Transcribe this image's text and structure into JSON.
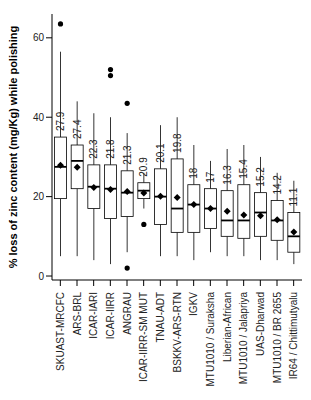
{
  "chart_data": {
    "type": "boxplot",
    "y_label": "% loss of zinc content (mg/Kg) while polishing",
    "categories": [
      "SKUAST-MRCFC",
      "ARS-BRL",
      "ICAR-IARI",
      "ICAR-IIRR",
      "ANGRAU",
      "ICAR-IIRR-SM MUT",
      "TNAU-ADT",
      "BSKKV-ARS-RTN",
      "IGKV",
      "MTU1010 / Suraksha",
      "Liberian-African",
      "MTU1010 / Jalapriya",
      "UAS-Dharwad",
      "MTU1010 / BR 2655",
      "IR64 / Chittimutyalu"
    ],
    "values": [
      27.9,
      27.4,
      22.3,
      21.8,
      21.3,
      20.9,
      20.1,
      19.8,
      18,
      17,
      16.3,
      15.4,
      15.2,
      14.2,
      11.1
    ],
    "stats": [
      {
        "min": 5,
        "q1": 19.5,
        "median": 27.5,
        "q3": 35,
        "max": 56.5,
        "outliers": [
          63.5
        ]
      },
      {
        "min": 5,
        "q1": 22,
        "median": 29,
        "q3": 33,
        "max": 44,
        "outliers": []
      },
      {
        "min": 4,
        "q1": 17,
        "median": 22.5,
        "q3": 28,
        "max": 41,
        "outliers": []
      },
      {
        "min": 3,
        "q1": 14.5,
        "median": 22,
        "q3": 28,
        "max": 40,
        "outliers": [
          52,
          50.5
        ]
      },
      {
        "min": 6,
        "q1": 15,
        "median": 21,
        "q3": 26.5,
        "max": 36,
        "outliers": [
          43.5,
          2
        ]
      },
      {
        "min": 17,
        "q1": 19.5,
        "median": 21.5,
        "q3": 23.5,
        "max": 26,
        "outliers": [
          13
        ]
      },
      {
        "min": 5,
        "q1": 13,
        "median": 20,
        "q3": 27,
        "max": 38,
        "outliers": []
      },
      {
        "min": 5,
        "q1": 11,
        "median": 17,
        "q3": 29.5,
        "max": 40,
        "outliers": []
      },
      {
        "min": 4,
        "q1": 11,
        "median": 18,
        "q3": 23,
        "max": 33,
        "outliers": []
      },
      {
        "min": 6,
        "q1": 12,
        "median": 17,
        "q3": 22,
        "max": 29,
        "outliers": []
      },
      {
        "min": 5,
        "q1": 10,
        "median": 14,
        "q3": 21.5,
        "max": 32,
        "outliers": []
      },
      {
        "min": 5,
        "q1": 9.5,
        "median": 14,
        "q3": 23,
        "max": 33,
        "outliers": []
      },
      {
        "min": 4,
        "q1": 10,
        "median": 16,
        "q3": 21,
        "max": 30,
        "outliers": []
      },
      {
        "min": 4,
        "q1": 9,
        "median": 14,
        "q3": 19,
        "max": 26,
        "outliers": []
      },
      {
        "min": 3,
        "q1": 6,
        "median": 10,
        "q3": 16,
        "max": 24,
        "outliers": []
      }
    ],
    "ylim": [
      -1,
      66
    ],
    "yticks": [
      0,
      20,
      40,
      60
    ],
    "grid": false,
    "data_labels": true,
    "marker": "diamond",
    "color": "#000000"
  }
}
